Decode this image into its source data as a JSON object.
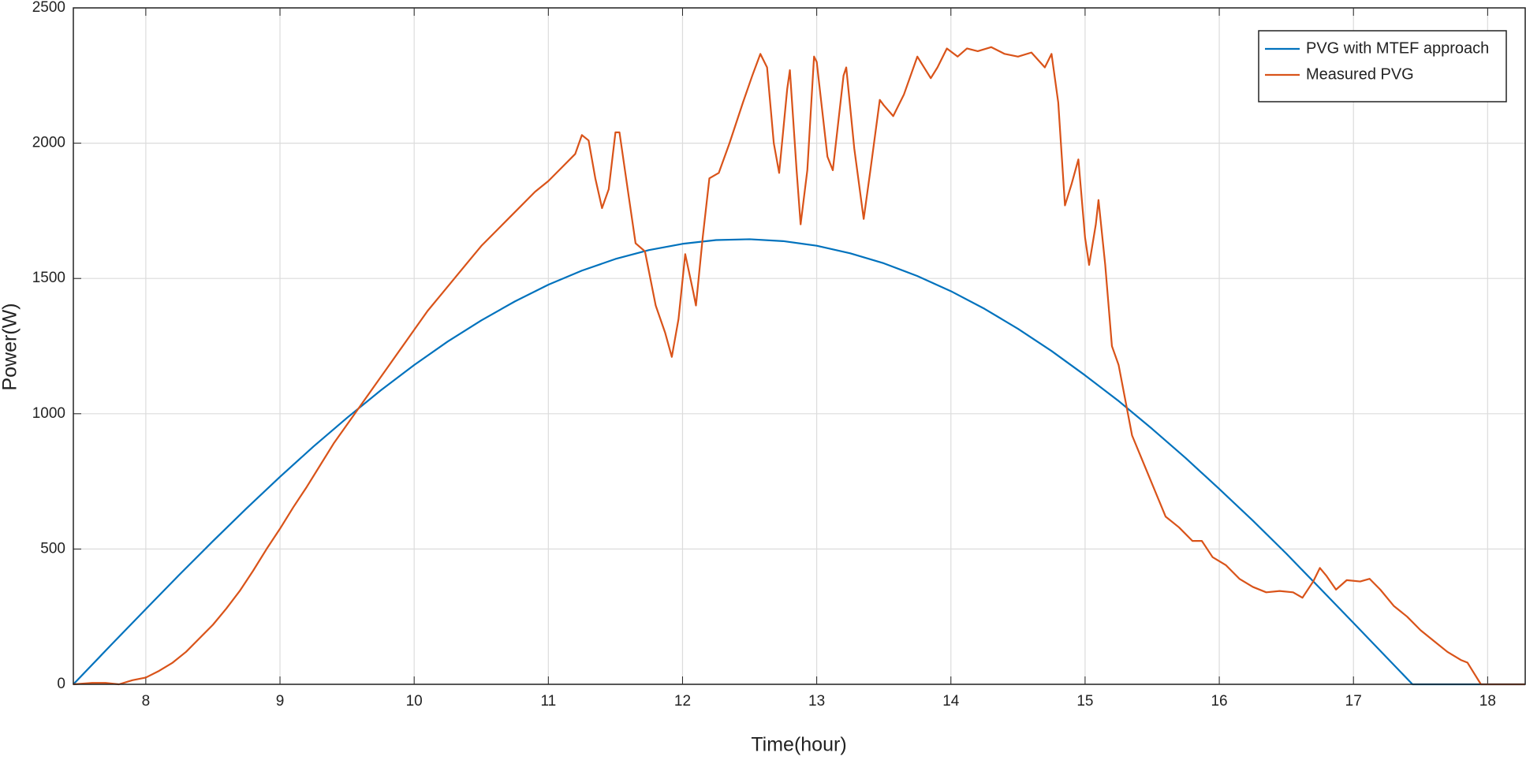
{
  "chart_data": {
    "type": "line",
    "xlabel": "Time(hour)",
    "ylabel": "Power(W)",
    "xlim": [
      7.46,
      18.28
    ],
    "ylim": [
      0,
      2500
    ],
    "xticks": [
      8,
      9,
      10,
      11,
      12,
      13,
      14,
      15,
      16,
      17,
      18
    ],
    "yticks": [
      0,
      500,
      1000,
      1500,
      2000,
      2500
    ],
    "grid": true,
    "legend": "top-right",
    "series": [
      {
        "name": "PVG with MTEF approach",
        "color": "#0072BD",
        "x": [
          7.46,
          7.75,
          8,
          8.25,
          8.5,
          8.75,
          9,
          9.25,
          9.5,
          9.75,
          10,
          10.25,
          10.5,
          10.75,
          11,
          11.25,
          11.5,
          11.75,
          12,
          12.25,
          12.5,
          12.75,
          13,
          13.25,
          13.5,
          13.75,
          14,
          14.25,
          14.5,
          14.75,
          15,
          15.25,
          15.5,
          15.75,
          16,
          16.25,
          16.5,
          16.75,
          17,
          17.25,
          17.44,
          18.28
        ],
        "values": [
          0,
          150,
          278,
          405,
          529,
          650,
          767,
          879,
          985,
          1086,
          1180,
          1267,
          1345,
          1415,
          1477,
          1529,
          1572,
          1605,
          1628,
          1642,
          1645,
          1638,
          1621,
          1593,
          1556,
          1509,
          1453,
          1388,
          1314,
          1232,
          1142,
          1047,
          944,
          836,
          722,
          605,
          483,
          355,
          227,
          98,
          0,
          0
        ]
      },
      {
        "name": "Measured PVG",
        "color": "#D95319",
        "x": [
          7.46,
          7.6,
          7.7,
          7.8,
          7.9,
          8.0,
          8.1,
          8.2,
          8.3,
          8.4,
          8.5,
          8.6,
          8.7,
          8.8,
          8.9,
          9.0,
          9.1,
          9.2,
          9.3,
          9.4,
          9.5,
          9.6,
          9.7,
          9.8,
          9.9,
          10.0,
          10.1,
          10.2,
          10.3,
          10.4,
          10.5,
          10.6,
          10.7,
          10.8,
          10.9,
          11.0,
          11.1,
          11.2,
          11.25,
          11.3,
          11.35,
          11.4,
          11.45,
          11.5,
          11.53,
          11.6,
          11.65,
          11.72,
          11.8,
          11.87,
          11.92,
          11.97,
          12.02,
          12.08,
          12.1,
          12.15,
          12.2,
          12.27,
          12.35,
          12.45,
          12.52,
          12.58,
          12.63,
          12.68,
          12.72,
          12.78,
          12.8,
          12.85,
          12.88,
          12.93,
          12.98,
          13.0,
          13.08,
          13.12,
          13.2,
          13.22,
          13.28,
          13.35,
          13.4,
          13.47,
          13.5,
          13.57,
          13.65,
          13.75,
          13.85,
          13.9,
          13.97,
          14.05,
          14.12,
          14.2,
          14.3,
          14.4,
          14.5,
          14.6,
          14.7,
          14.75,
          14.8,
          14.85,
          14.9,
          14.95,
          15.0,
          15.03,
          15.08,
          15.1,
          15.15,
          15.2,
          15.25,
          15.3,
          15.35,
          15.45,
          15.55,
          15.6,
          15.7,
          15.8,
          15.87,
          15.95,
          16.05,
          16.15,
          16.25,
          16.35,
          16.45,
          16.55,
          16.62,
          16.7,
          16.75,
          16.8,
          16.87,
          16.95,
          17.05,
          17.12,
          17.2,
          17.3,
          17.4,
          17.5,
          17.6,
          17.7,
          17.8,
          17.85,
          17.9,
          17.95,
          18.28
        ],
        "values": [
          0,
          5,
          5,
          0,
          15,
          25,
          50,
          80,
          120,
          170,
          220,
          280,
          345,
          420,
          500,
          575,
          655,
          730,
          810,
          890,
          960,
          1030,
          1100,
          1170,
          1240,
          1310,
          1380,
          1440,
          1500,
          1560,
          1620,
          1670,
          1720,
          1770,
          1820,
          1860,
          1910,
          1960,
          2030,
          2010,
          1870,
          1760,
          1830,
          2040,
          2040,
          1800,
          1630,
          1600,
          1400,
          1300,
          1210,
          1350,
          1590,
          1450,
          1400,
          1650,
          1870,
          1890,
          2000,
          2150,
          2250,
          2330,
          2280,
          2000,
          1890,
          2200,
          2270,
          1900,
          1700,
          1900,
          2320,
          2300,
          1950,
          1900,
          2250,
          2280,
          1980,
          1720,
          1900,
          2160,
          2140,
          2100,
          2180,
          2320,
          2240,
          2280,
          2350,
          2320,
          2350,
          2340,
          2355,
          2330,
          2320,
          2335,
          2280,
          2330,
          2150,
          1770,
          1850,
          1940,
          1650,
          1550,
          1700,
          1790,
          1550,
          1250,
          1180,
          1050,
          920,
          800,
          680,
          620,
          580,
          530,
          530,
          470,
          440,
          390,
          360,
          340,
          345,
          340,
          320,
          380,
          430,
          400,
          350,
          385,
          380,
          390,
          350,
          290,
          250,
          200,
          160,
          120,
          90,
          80,
          40,
          0,
          0
        ]
      }
    ]
  }
}
